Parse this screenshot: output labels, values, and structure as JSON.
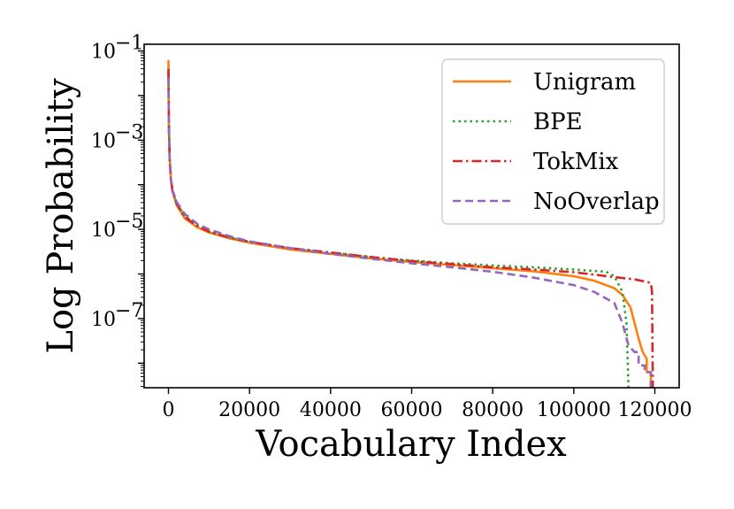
{
  "chart_data": {
    "type": "line",
    "title": "",
    "xlabel": "Vocabulary Index",
    "ylabel": "Log Probability",
    "y_scale": "log",
    "xlim": [
      -6000,
      126000
    ],
    "ylim_log10": [
      -8.55,
      -0.85
    ],
    "x_ticks": [
      {
        "value": 0,
        "label": "0"
      },
      {
        "value": 20000,
        "label": "20000"
      },
      {
        "value": 40000,
        "label": "40000"
      },
      {
        "value": 60000,
        "label": "60000"
      },
      {
        "value": 80000,
        "label": "80000"
      },
      {
        "value": 100000,
        "label": "100000"
      },
      {
        "value": 120000,
        "label": "120000"
      }
    ],
    "y_ticks": [
      {
        "exp": -1,
        "base": "10",
        "sup": "−1"
      },
      {
        "exp": -3,
        "base": "10",
        "sup": "−3"
      },
      {
        "exp": -5,
        "base": "10",
        "sup": "−5"
      },
      {
        "exp": -7,
        "base": "10",
        "sup": "−7"
      }
    ],
    "grid": false,
    "legend_position": "top-right",
    "series": [
      {
        "name": "Unigram",
        "color": "#ff7f0e",
        "dash": "solid",
        "points": [
          [
            0,
            -1.2
          ],
          [
            100,
            -2.6
          ],
          [
            300,
            -3.4
          ],
          [
            600,
            -3.85
          ],
          [
            1000,
            -4.15
          ],
          [
            2000,
            -4.45
          ],
          [
            4000,
            -4.75
          ],
          [
            7000,
            -4.95
          ],
          [
            10000,
            -5.07
          ],
          [
            15000,
            -5.2
          ],
          [
            20000,
            -5.3
          ],
          [
            30000,
            -5.45
          ],
          [
            40000,
            -5.55
          ],
          [
            50000,
            -5.65
          ],
          [
            60000,
            -5.73
          ],
          [
            70000,
            -5.8
          ],
          [
            80000,
            -5.87
          ],
          [
            90000,
            -5.94
          ],
          [
            100000,
            -6.05
          ],
          [
            105000,
            -6.15
          ],
          [
            110000,
            -6.32
          ],
          [
            112000,
            -6.47
          ],
          [
            114000,
            -6.75
          ],
          [
            115000,
            -7.1
          ],
          [
            116000,
            -7.45
          ],
          [
            117000,
            -7.75
          ],
          [
            118000,
            -7.9
          ],
          [
            118000,
            -8.2
          ],
          [
            118500,
            -8.2
          ],
          [
            119000,
            -8.2
          ],
          [
            119000,
            -8.55
          ]
        ]
      },
      {
        "name": "BPE",
        "color": "#2ca02c",
        "dash": "dotted",
        "points": [
          [
            0,
            -1.5
          ],
          [
            100,
            -2.7
          ],
          [
            300,
            -3.45
          ],
          [
            600,
            -3.9
          ],
          [
            1000,
            -4.15
          ],
          [
            2000,
            -4.4
          ],
          [
            4000,
            -4.7
          ],
          [
            7000,
            -4.9
          ],
          [
            10000,
            -5.05
          ],
          [
            15000,
            -5.18
          ],
          [
            20000,
            -5.28
          ],
          [
            30000,
            -5.42
          ],
          [
            40000,
            -5.52
          ],
          [
            50000,
            -5.62
          ],
          [
            60000,
            -5.7
          ],
          [
            70000,
            -5.76
          ],
          [
            80000,
            -5.81
          ],
          [
            90000,
            -5.85
          ],
          [
            100000,
            -5.9
          ],
          [
            108000,
            -5.95
          ],
          [
            110000,
            -6.05
          ],
          [
            112000,
            -6.4
          ],
          [
            113000,
            -7.1
          ],
          [
            113500,
            -8.55
          ]
        ]
      },
      {
        "name": "TokMix",
        "color": "#d62728",
        "dash": "dashdot",
        "points": [
          [
            0,
            -1.4
          ],
          [
            100,
            -2.6
          ],
          [
            300,
            -3.45
          ],
          [
            600,
            -3.85
          ],
          [
            1000,
            -4.15
          ],
          [
            2000,
            -4.42
          ],
          [
            4000,
            -4.72
          ],
          [
            7000,
            -4.92
          ],
          [
            10000,
            -5.05
          ],
          [
            15000,
            -5.18
          ],
          [
            20000,
            -5.28
          ],
          [
            30000,
            -5.42
          ],
          [
            40000,
            -5.52
          ],
          [
            50000,
            -5.62
          ],
          [
            60000,
            -5.71
          ],
          [
            70000,
            -5.78
          ],
          [
            80000,
            -5.85
          ],
          [
            90000,
            -5.9
          ],
          [
            100000,
            -5.96
          ],
          [
            110000,
            -6.07
          ],
          [
            115000,
            -6.12
          ],
          [
            119000,
            -6.2
          ],
          [
            119300,
            -6.4
          ],
          [
            119500,
            -8.55
          ]
        ]
      },
      {
        "name": "NoOverlap",
        "color": "#9467bd",
        "dash": "dashed",
        "points": [
          [
            0,
            -1.6
          ],
          [
            100,
            -2.7
          ],
          [
            300,
            -3.5
          ],
          [
            600,
            -3.9
          ],
          [
            1000,
            -4.12
          ],
          [
            2000,
            -4.38
          ],
          [
            4000,
            -4.65
          ],
          [
            7000,
            -4.87
          ],
          [
            10000,
            -5.0
          ],
          [
            15000,
            -5.15
          ],
          [
            20000,
            -5.27
          ],
          [
            30000,
            -5.42
          ],
          [
            40000,
            -5.55
          ],
          [
            50000,
            -5.66
          ],
          [
            60000,
            -5.76
          ],
          [
            70000,
            -5.85
          ],
          [
            80000,
            -5.95
          ],
          [
            90000,
            -6.08
          ],
          [
            100000,
            -6.25
          ],
          [
            105000,
            -6.4
          ],
          [
            110000,
            -6.65
          ],
          [
            112000,
            -7.1
          ],
          [
            113500,
            -7.6
          ],
          [
            115000,
            -7.75
          ],
          [
            116000,
            -7.75
          ],
          [
            116000,
            -8.05
          ],
          [
            117500,
            -8.05
          ],
          [
            117500,
            -8.2
          ],
          [
            119000,
            -8.2
          ],
          [
            119000,
            -8.55
          ]
        ]
      }
    ]
  }
}
